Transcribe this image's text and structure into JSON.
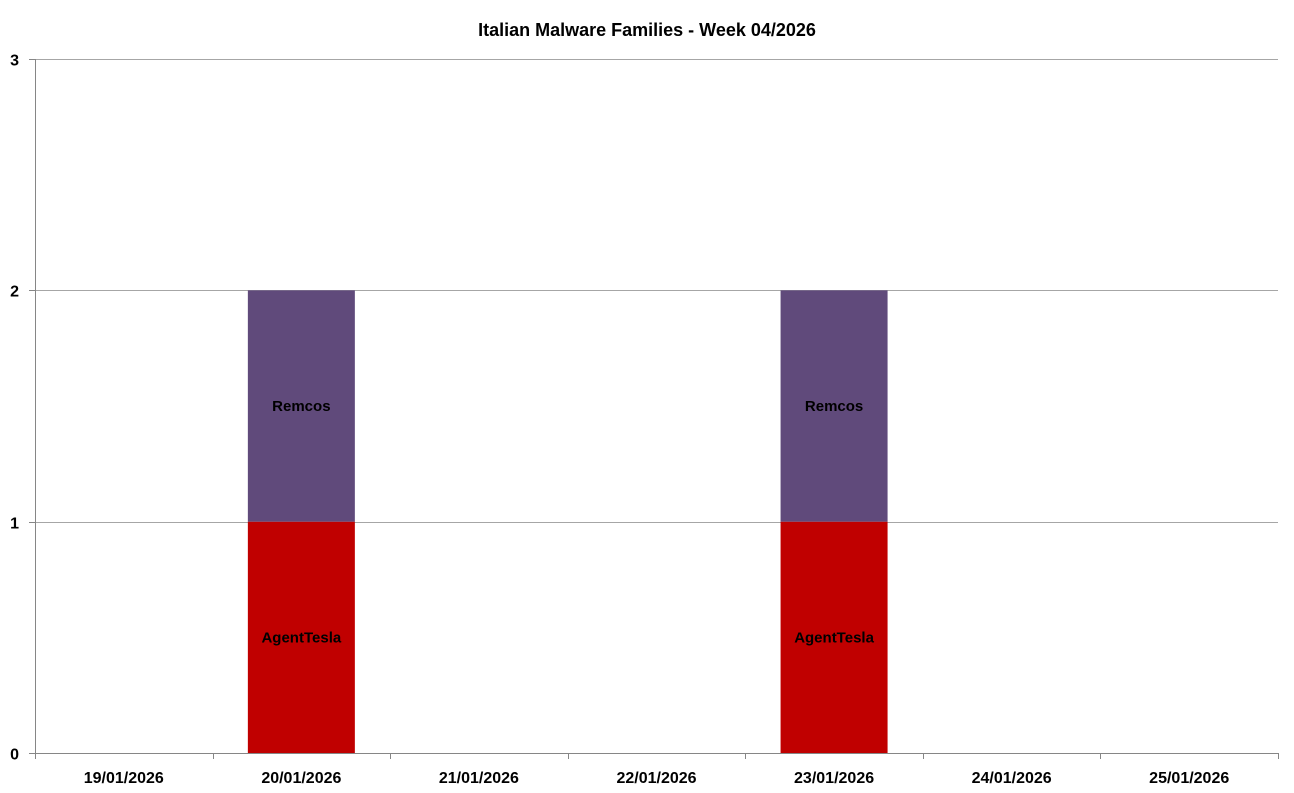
{
  "chart_data": {
    "type": "bar",
    "stacked": true,
    "title": "Italian Malware Families - Week 04/2026",
    "xlabel": "",
    "ylabel": "",
    "categories": [
      "19/01/2026",
      "20/01/2026",
      "21/01/2026",
      "22/01/2026",
      "23/01/2026",
      "24/01/2026",
      "25/01/2026"
    ],
    "ylim": [
      0,
      3
    ],
    "yticks": [
      0,
      1,
      2,
      3
    ],
    "grid": true,
    "legend": "none",
    "series": [
      {
        "name": "AgentTesla",
        "color": "#c00000",
        "values": [
          0,
          1,
          0,
          0,
          1,
          0,
          0
        ]
      },
      {
        "name": "Remcos",
        "color": "#604a7b",
        "values": [
          0,
          1,
          0,
          0,
          1,
          0,
          0
        ]
      }
    ]
  }
}
